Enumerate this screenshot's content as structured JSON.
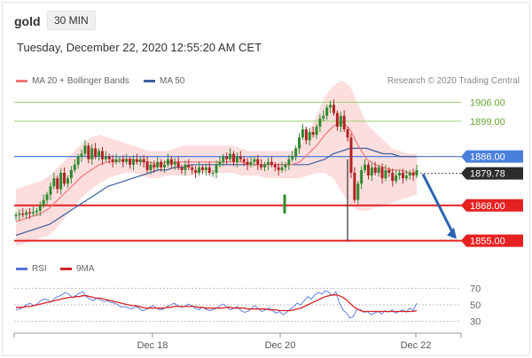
{
  "header": {
    "symbol": "gold",
    "timeframe": "30 MIN",
    "datetime": "Tuesday, December 22, 2020 12:55:20 AM CET"
  },
  "legend": {
    "ma20": "MA 20 + Bollinger Bands",
    "ma50": "MA 50",
    "copyright": "Research © 2020 Trading Central"
  },
  "rsi_legend": {
    "rsi": "RSI",
    "ma": "9MA"
  },
  "colors": {
    "ma20": "#f07878",
    "ma50": "#3d5f9e",
    "band_fill": "#fbd3d3",
    "green_level": "#9ccf6f",
    "green_text": "#6aa531",
    "blue_level": "#4a7fdc",
    "red_level": "#e52222",
    "candle_up": "#2f8a2f",
    "candle_down": "#b22222",
    "arrow": "#2d64b0",
    "rsi_line": "#5573e0",
    "rsi_ma": "#d62222"
  },
  "chart_data": {
    "type": "candlestick",
    "price_ylim": [
      1849,
      1911
    ],
    "x_ticks": [
      "Dec 18",
      "Dec 20",
      "Dec 22"
    ],
    "levels": [
      {
        "value": 1906.0,
        "label": "1906.00",
        "kind": "resistance"
      },
      {
        "value": 1899.0,
        "label": "1899.00",
        "kind": "resistance"
      },
      {
        "value": 1886.0,
        "label": "1886.00",
        "kind": "pivot"
      },
      {
        "value": 1868.0,
        "label": "1868.00",
        "kind": "support"
      },
      {
        "value": 1855.0,
        "label": "1855.00",
        "kind": "support"
      }
    ],
    "last_price": {
      "value": 1879.78,
      "label": "1879.78"
    },
    "closes": [
      1864.5,
      1865,
      1864.5,
      1865.5,
      1865,
      1865.5,
      1866,
      1868,
      1870,
      1872,
      1875,
      1878,
      1874,
      1880,
      1876,
      1878,
      1881,
      1883,
      1886,
      1887,
      1890,
      1885,
      1889,
      1886,
      1888,
      1885,
      1886,
      1885,
      1884,
      1885,
      1885,
      1884,
      1885,
      1883,
      1885,
      1884,
      1885,
      1884,
      1881,
      1883,
      1882,
      1884,
      1882,
      1883,
      1885,
      1883,
      1884,
      1882,
      1881,
      1883,
      1882,
      1881,
      1880,
      1882,
      1881,
      1882,
      1880,
      1880,
      1883,
      1884,
      1886,
      1885,
      1887,
      1884,
      1886,
      1885,
      1884,
      1883,
      1884,
      1885,
      1883,
      1882,
      1883,
      1884,
      1883,
      1882,
      1881,
      1882,
      1883,
      1885,
      1886,
      1889,
      1893,
      1896,
      1892,
      1895,
      1894,
      1897,
      1900,
      1901,
      1904,
      1905,
      1902,
      1897,
      1901,
      1896,
      1893,
      1880,
      1870,
      1876,
      1881,
      1883,
      1879,
      1882,
      1880,
      1882,
      1878,
      1881,
      1880,
      1877,
      1879,
      1880,
      1878,
      1879,
      1880,
      1879,
      1881
    ],
    "bb_upper": [
      1874,
      1875,
      1876,
      1877,
      1879,
      1882,
      1885,
      1888,
      1891,
      1893,
      1894,
      1893,
      1892,
      1891,
      1890,
      1889,
      1888,
      1888,
      1888,
      1889,
      1890,
      1890,
      1890,
      1890,
      1890,
      1890,
      1890,
      1889,
      1888,
      1888,
      1888,
      1888,
      1888,
      1888,
      1890,
      1895,
      1901,
      1908,
      1912,
      1914,
      1912,
      1905,
      1898,
      1895,
      1892,
      1889,
      1888,
      1887,
      1887
    ],
    "bb_lower": [
      1853,
      1854,
      1855,
      1856,
      1857,
      1860,
      1864,
      1868,
      1871,
      1874,
      1876,
      1878,
      1879,
      1880,
      1880,
      1879,
      1878,
      1878,
      1879,
      1879,
      1879,
      1879,
      1880,
      1880,
      1880,
      1880,
      1880,
      1879,
      1879,
      1879,
      1878,
      1878,
      1878,
      1878,
      1878,
      1879,
      1880,
      1880,
      1878,
      1873,
      1868,
      1866,
      1866,
      1867,
      1868,
      1869,
      1870,
      1871,
      1872
    ],
    "ma20": [
      1862,
      1863,
      1864,
      1865,
      1867,
      1870,
      1873,
      1876,
      1879,
      1881,
      1883,
      1884,
      1884,
      1885,
      1885,
      1884,
      1884,
      1883,
      1884,
      1884,
      1884,
      1884,
      1884,
      1884,
      1884,
      1884,
      1884,
      1884,
      1883,
      1883,
      1883,
      1883,
      1883,
      1883,
      1884,
      1887,
      1890,
      1894,
      1897,
      1899,
      1896,
      1890,
      1885,
      1883,
      1882,
      1881,
      1881,
      1880,
      1880
    ],
    "ma50": [
      1857,
      1858,
      1859,
      1860,
      1861,
      1863,
      1865,
      1867,
      1869,
      1871,
      1873,
      1875,
      1876,
      1877,
      1878,
      1879,
      1880,
      1881,
      1881,
      1882,
      1882,
      1883,
      1883,
      1883,
      1883,
      1883,
      1883,
      1883,
      1883,
      1883,
      1883,
      1883,
      1883,
      1883,
      1883,
      1883,
      1884,
      1885,
      1887,
      1888,
      1889,
      1889,
      1889,
      1888,
      1887,
      1887,
      1886,
      1886,
      1886
    ],
    "vertical_bar": {
      "index": 54,
      "high": 1872,
      "low": 1865
    },
    "low_wick": {
      "index": 97,
      "low": 1855
    },
    "forecast_arrow": {
      "from": 1879.5,
      "to": 1855
    },
    "rsi_ylim": [
      20,
      80
    ],
    "rsi_ticks": [
      70,
      50,
      30
    ],
    "rsi": [
      44,
      45,
      47,
      50,
      52,
      49,
      51,
      55,
      57,
      56,
      53,
      58,
      60,
      62,
      65,
      63,
      59,
      61,
      64,
      66,
      60,
      57,
      55,
      58,
      56,
      54,
      55,
      53,
      52,
      50,
      47,
      48,
      46,
      45,
      48,
      46,
      43,
      44,
      47,
      49,
      46,
      44,
      45,
      48,
      50,
      52,
      49,
      47,
      48,
      51,
      49,
      46,
      44,
      47,
      45,
      43,
      44,
      46,
      49,
      51,
      47,
      44,
      46,
      48,
      43,
      41,
      42,
      46,
      49,
      45,
      42,
      44,
      46,
      43,
      40,
      42,
      38,
      41,
      45,
      48,
      52,
      50,
      55,
      60,
      57,
      62,
      65,
      63,
      67,
      65,
      61,
      66,
      52,
      44,
      40,
      34,
      36,
      45,
      44,
      41,
      42,
      38,
      40,
      42,
      39,
      43,
      41,
      44,
      40,
      42,
      44,
      41,
      46,
      43,
      52
    ],
    "rsi_ma": [
      47,
      47,
      47,
      48,
      48,
      49,
      50,
      51,
      52,
      53,
      54,
      55,
      56,
      57,
      58,
      59,
      59,
      60,
      60,
      61,
      61,
      60,
      59,
      58,
      58,
      57,
      56,
      55,
      54,
      53,
      52,
      51,
      50,
      49,
      49,
      48,
      47,
      46,
      46,
      46,
      46,
      46,
      46,
      47,
      47,
      48,
      48,
      48,
      48,
      48,
      48,
      48,
      47,
      47,
      46,
      46,
      46,
      46,
      46,
      46,
      47,
      47,
      46,
      46,
      46,
      46,
      45,
      45,
      45,
      45,
      45,
      45,
      44,
      44,
      44,
      43,
      43,
      43,
      43,
      44,
      45,
      46,
      48,
      50,
      52,
      54,
      56,
      58,
      60,
      61,
      62,
      62,
      61,
      59,
      56,
      52,
      48,
      45,
      43,
      42,
      42,
      42,
      42,
      42,
      42,
      42,
      42,
      42,
      42,
      42,
      42,
      42,
      42,
      42,
      43
    ]
  }
}
